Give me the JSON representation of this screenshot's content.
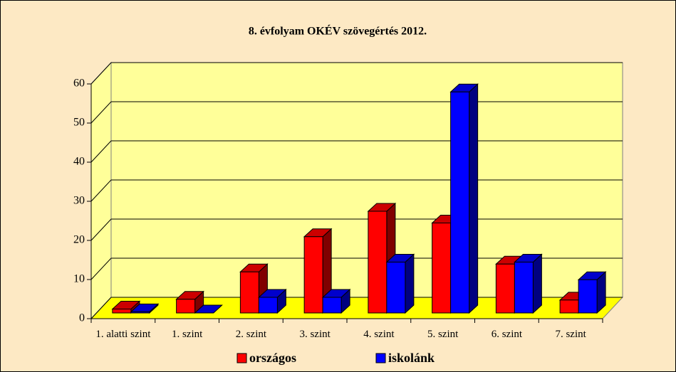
{
  "chart_data": {
    "type": "bar3d",
    "title": "8. évfolyam OKÉV szövegértés 2012.",
    "categories": [
      "1. alatti szint",
      "1. szint",
      "2. szint",
      "3. szint",
      "4. szint",
      "5. szint",
      "6. szint",
      "7. szint"
    ],
    "series": [
      {
        "name": "országos",
        "color": "#ff0000",
        "values": [
          1,
          3.5,
          10.5,
          19.5,
          26,
          23,
          12.5,
          3.3
        ]
      },
      {
        "name": "iskolánk",
        "color": "#0000ff",
        "values": [
          0.3,
          0,
          4,
          4,
          13,
          56.5,
          13,
          8.5
        ]
      }
    ],
    "ylim": [
      0,
      60
    ],
    "yticks": [
      0,
      10,
      20,
      30,
      40,
      50,
      60
    ],
    "grid": true,
    "legend": "bottom"
  }
}
